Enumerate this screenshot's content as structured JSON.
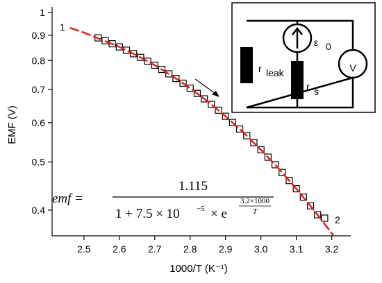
{
  "chart_data": {
    "type": "scatter",
    "x_label": "1000/T (K⁻¹)",
    "y_label": "EMF  (V)",
    "xlim": [
      2.41,
      3.24
    ],
    "ylim": [
      0.355,
      1
    ],
    "log_y": true,
    "xticks": [
      2.5,
      2.6,
      2.7,
      2.8,
      2.9,
      {
        "value": 3,
        "label": "3.0"
      },
      3.1,
      3.2
    ],
    "yticks": [
      0.4,
      0.5,
      0.6,
      0.7,
      0.8,
      0.9,
      1
    ],
    "series": [
      {
        "kind": "markers",
        "color": "#000000",
        "x": [
          2.54,
          2.56,
          2.58,
          2.6,
          2.62,
          2.64,
          2.66,
          2.68,
          2.7,
          2.72,
          2.74,
          2.76,
          2.78,
          2.8,
          2.82,
          2.84,
          2.86,
          2.88,
          2.9,
          2.92,
          2.94,
          2.96,
          2.98,
          3.0,
          3.02,
          3.04,
          3.06,
          3.08,
          3.1,
          3.12,
          3.14,
          3.16,
          3.18
        ],
        "values": [
          0.889,
          0.877,
          0.865,
          0.8525,
          0.8396,
          0.826,
          0.812,
          0.7978,
          0.783,
          0.768,
          0.7524,
          0.7365,
          0.7204,
          0.704,
          0.687,
          0.67,
          0.653,
          0.6356,
          0.618,
          0.6005,
          0.5826,
          0.5648,
          0.5469,
          0.5291,
          0.5113,
          0.4937,
          0.4762,
          0.4588,
          0.4416,
          0.4247,
          0.408,
          0.3915,
          0.3854
        ]
      },
      {
        "kind": "fit",
        "color": "#e0201b",
        "x": [
          2.46,
          2.5,
          2.6,
          2.65,
          2.7,
          2.75,
          2.8,
          2.85,
          2.9,
          2.95,
          3.0,
          3.05,
          3.1,
          3.15,
          3.21
        ],
        "values": [
          0.9317,
          0.911,
          0.8525,
          0.819,
          0.783,
          0.7445,
          0.704,
          0.6616,
          0.618,
          0.5737,
          0.5291,
          0.485,
          0.4416,
          0.3997,
          0.3519
        ]
      }
    ],
    "annotations": {
      "start": "1",
      "end": "2"
    },
    "equation": {
      "lhs": "emf =",
      "numerator": "1.115",
      "denominator": "1 + 7.5 × 10",
      "power": "−5",
      "times_e": "× e",
      "exp_num": "3.2×1000",
      "exp_den": "T"
    },
    "inset": {
      "r_leak": "r",
      "r_leak_sub": "leak",
      "emf": "ε",
      "emf_sub": "0",
      "r_s": "r",
      "r_s_sub": "s",
      "meter": "V"
    }
  }
}
